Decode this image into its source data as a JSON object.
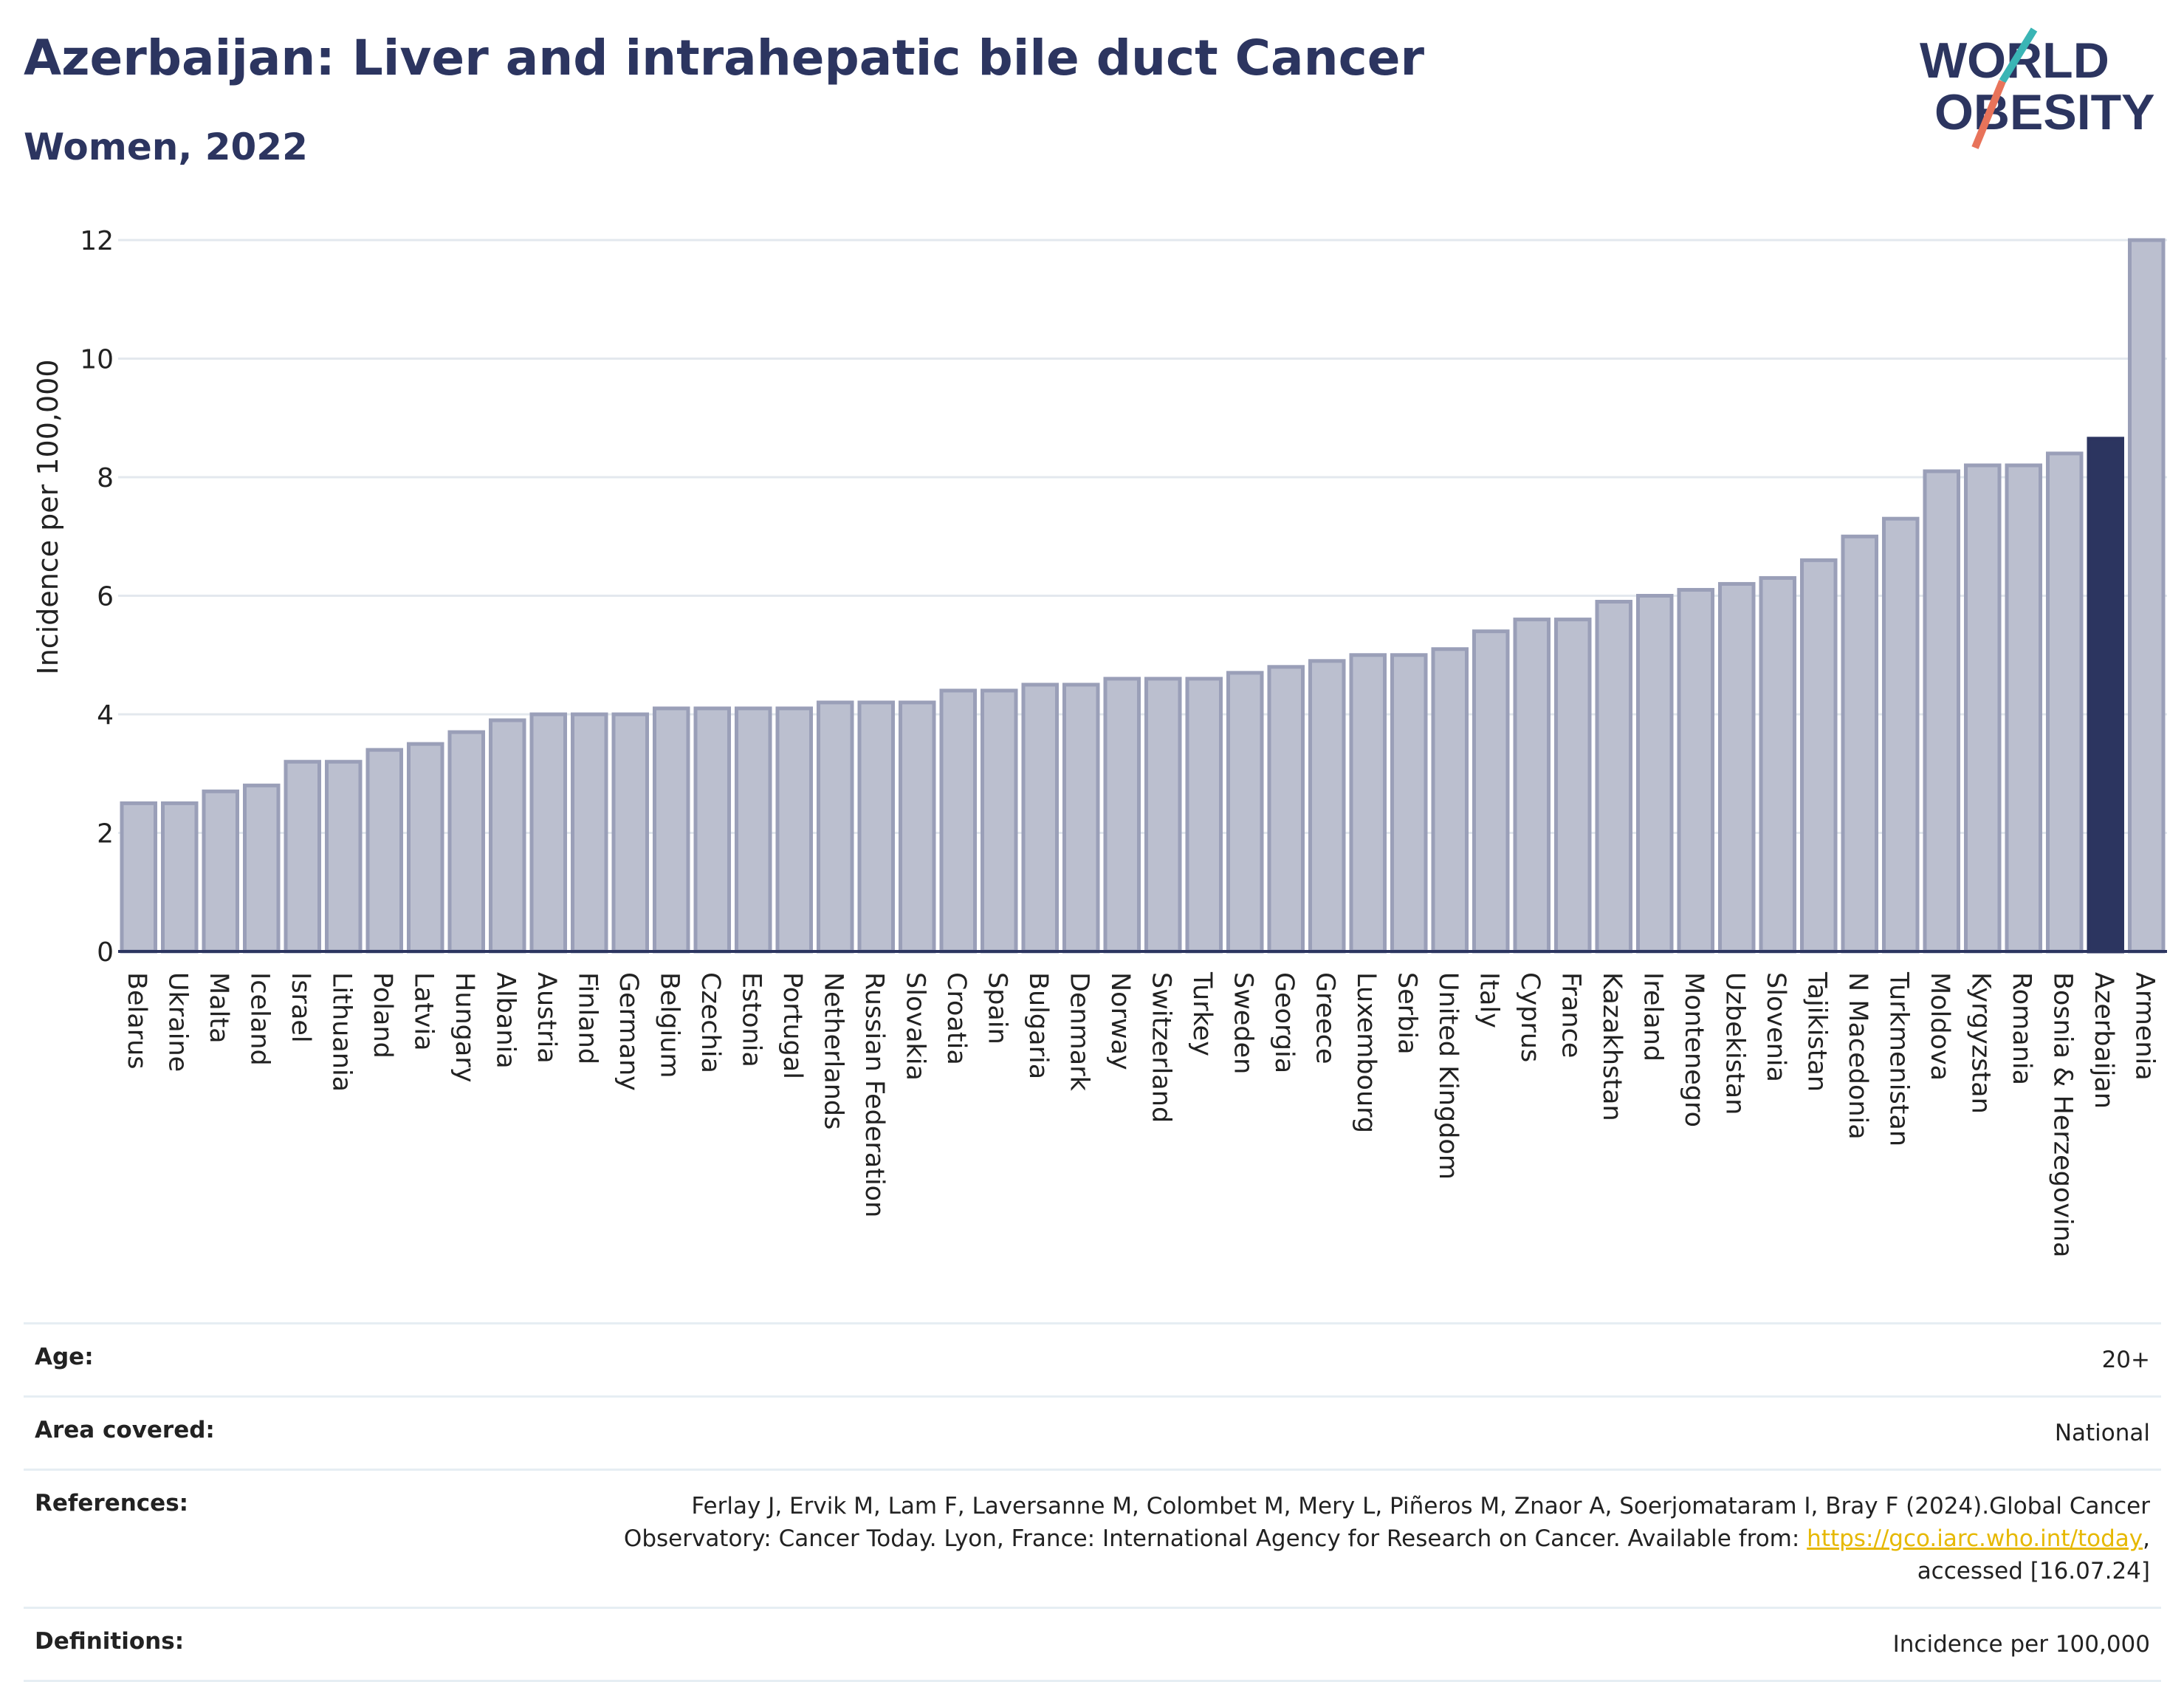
{
  "title": "Azerbaijan: Liver and intrahepatic bile duct Cancer",
  "subtitle": "Women, 2022",
  "logo": {
    "line1": "WORLD",
    "line2": "OBESITY",
    "colors": {
      "text": "#2c3560",
      "slash_top": "#3ab5b5",
      "slash_bottom": "#e8735a"
    }
  },
  "colors": {
    "bar": "#bbbfcf",
    "bar_stroke": "#9a9fb8",
    "highlight": "#2c3560",
    "grid": "#e3e8ee",
    "axis": "#2c3560"
  },
  "chart_data": {
    "type": "bar",
    "ylabel": "Incidence per 100,000",
    "ylim": [
      0,
      12
    ],
    "yticks": [
      0,
      2,
      4,
      6,
      8,
      10,
      12
    ],
    "highlight": "Azerbaijan",
    "categories": [
      "Belarus",
      "Ukraine",
      "Malta",
      "Iceland",
      "Israel",
      "Lithuania",
      "Poland",
      "Latvia",
      "Hungary",
      "Albania",
      "Austria",
      "Finland",
      "Germany",
      "Belgium",
      "Czechia",
      "Estonia",
      "Portugal",
      "Netherlands",
      "Russian Federation",
      "Slovakia",
      "Croatia",
      "Spain",
      "Bulgaria",
      "Denmark",
      "Norway",
      "Switzerland",
      "Turkey",
      "Sweden",
      "Georgia",
      "Greece",
      "Luxembourg",
      "Serbia",
      "United Kingdom",
      "Italy",
      "Cyprus",
      "France",
      "Kazakhstan",
      "Ireland",
      "Montenegro",
      "Uzbekistan",
      "Slovenia",
      "Tajikistan",
      "N Macedonia",
      "Turkmenistan",
      "Moldova",
      "Kyrgyzstan",
      "Romania",
      "Bosnia & Herzegovina",
      "Azerbaijan",
      "Armenia"
    ],
    "values": [
      2.5,
      2.5,
      2.7,
      2.8,
      3.2,
      3.2,
      3.4,
      3.5,
      3.7,
      3.9,
      4.0,
      4.0,
      4.0,
      4.1,
      4.1,
      4.1,
      4.1,
      4.2,
      4.2,
      4.2,
      4.4,
      4.4,
      4.5,
      4.5,
      4.6,
      4.6,
      4.6,
      4.7,
      4.8,
      4.9,
      5.0,
      5.0,
      5.1,
      5.4,
      5.6,
      5.6,
      5.9,
      6.0,
      6.1,
      6.2,
      6.3,
      6.6,
      7.0,
      7.3,
      8.1,
      8.2,
      8.2,
      8.4,
      8.65,
      12.0
    ]
  },
  "footer": {
    "age": {
      "label": "Age:",
      "value": "20+"
    },
    "area": {
      "label": "Area covered:",
      "value": "National"
    },
    "references": {
      "label": "References:",
      "line1": "Ferlay J, Ervik M, Lam F, Laversanne M, Colombet M, Mery L, Piñeros M, Znaor A, Soerjomataram I, Bray F (2024).Global Cancer",
      "line2": "Observatory: Cancer Today. Lyon, France: International Agency for Research on Cancer. Available from: ",
      "link": "https://gco.iarc.who.int/today",
      "line2_end": ",",
      "line3": "accessed [16.07.24]"
    },
    "definitions": {
      "label": "Definitions:",
      "value": "Incidence per 100,000"
    }
  }
}
